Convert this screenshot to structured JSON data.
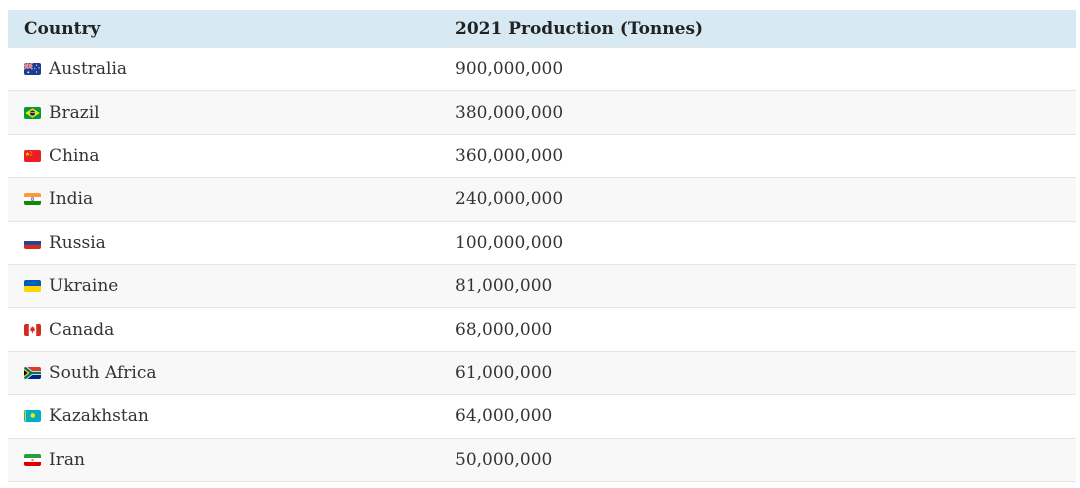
{
  "table": {
    "columns": [
      {
        "label": "Country"
      },
      {
        "label": "2021 Production (Tonnes)"
      }
    ],
    "rows": [
      {
        "country": "Australia",
        "flag_icon": "australia-flag-icon",
        "production": "900,000,000"
      },
      {
        "country": "Brazil",
        "flag_icon": "brazil-flag-icon",
        "production": "380,000,000"
      },
      {
        "country": "China",
        "flag_icon": "china-flag-icon",
        "production": "360,000,000"
      },
      {
        "country": "India",
        "flag_icon": "india-flag-icon",
        "production": "240,000,000"
      },
      {
        "country": "Russia",
        "flag_icon": "russia-flag-icon",
        "production": "100,000,000"
      },
      {
        "country": "Ukraine",
        "flag_icon": "ukraine-flag-icon",
        "production": "81,000,000"
      },
      {
        "country": "Canada",
        "flag_icon": "canada-flag-icon",
        "production": "68,000,000"
      },
      {
        "country": "South Africa",
        "flag_icon": "south-africa-flag-icon",
        "production": "61,000,000"
      },
      {
        "country": "Kazakhstan",
        "flag_icon": "kazakhstan-flag-icon",
        "production": "64,000,000"
      },
      {
        "country": "Iran",
        "flag_icon": "iran-flag-icon",
        "production": "50,000,000"
      }
    ]
  },
  "colors": {
    "header_bg": "#d7eaf3",
    "header_text": "#222222",
    "stripe": "#f8f8f8",
    "border": "#e4e4e4",
    "text": "#333333"
  },
  "chart_data": {
    "type": "table",
    "title": "",
    "columns": [
      "Country",
      "2021 Production (Tonnes)"
    ],
    "rows": [
      [
        "Australia",
        900000000
      ],
      [
        "Brazil",
        380000000
      ],
      [
        "China",
        360000000
      ],
      [
        "India",
        240000000
      ],
      [
        "Russia",
        100000000
      ],
      [
        "Ukraine",
        81000000
      ],
      [
        "Canada",
        68000000
      ],
      [
        "South Africa",
        61000000
      ],
      [
        "Kazakhstan",
        64000000
      ],
      [
        "Iran",
        50000000
      ]
    ]
  }
}
